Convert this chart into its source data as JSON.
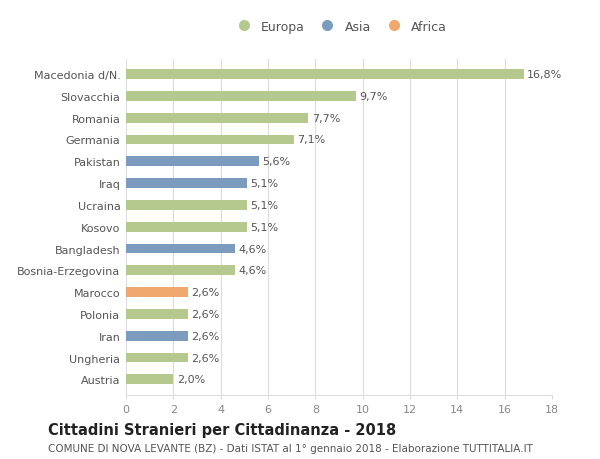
{
  "categories": [
    "Macedonia d/N.",
    "Slovacchia",
    "Romania",
    "Germania",
    "Pakistan",
    "Iraq",
    "Ucraina",
    "Kosovo",
    "Bangladesh",
    "Bosnia-Erzegovina",
    "Marocco",
    "Polonia",
    "Iran",
    "Ungheria",
    "Austria"
  ],
  "values": [
    16.8,
    9.7,
    7.7,
    7.1,
    5.6,
    5.1,
    5.1,
    5.1,
    4.6,
    4.6,
    2.6,
    2.6,
    2.6,
    2.6,
    2.0
  ],
  "labels": [
    "16,8%",
    "9,7%",
    "7,7%",
    "7,1%",
    "5,6%",
    "5,1%",
    "5,1%",
    "5,1%",
    "4,6%",
    "4,6%",
    "2,6%",
    "2,6%",
    "2,6%",
    "2,6%",
    "2,0%"
  ],
  "continents": [
    "Europa",
    "Europa",
    "Europa",
    "Europa",
    "Asia",
    "Asia",
    "Europa",
    "Europa",
    "Asia",
    "Europa",
    "Africa",
    "Europa",
    "Asia",
    "Europa",
    "Europa"
  ],
  "colors": {
    "Europa": "#b5c98e",
    "Asia": "#7b9bbf",
    "Africa": "#f0a86e"
  },
  "xlim": [
    0,
    18
  ],
  "xticks": [
    0,
    2,
    4,
    6,
    8,
    10,
    12,
    14,
    16,
    18
  ],
  "title": "Cittadini Stranieri per Cittadinanza - 2018",
  "subtitle": "COMUNE DI NOVA LEVANTE (BZ) - Dati ISTAT al 1° gennaio 2018 - Elaborazione TUTTITALIA.IT",
  "title_fontsize": 10.5,
  "subtitle_fontsize": 7.5,
  "background_color": "#ffffff",
  "grid_color": "#dddddd",
  "bar_height": 0.45,
  "label_fontsize": 8,
  "ytick_fontsize": 8,
  "xtick_fontsize": 8
}
